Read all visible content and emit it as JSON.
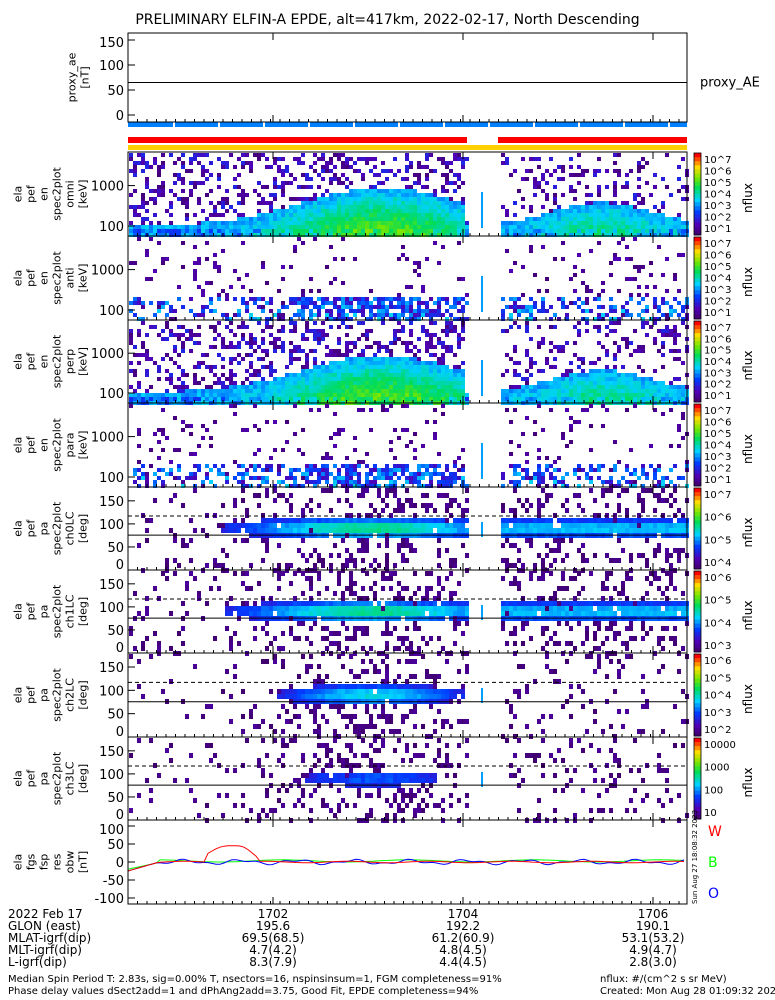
{
  "title": "PRELIMINARY ELFIN-A EPDE, alt=417km, 2022-02-17, North Descending",
  "chart_data": [
    {
      "type": "line",
      "name": "proxy_ae",
      "ylabel": [
        "proxy_ae",
        "[nT]"
      ],
      "legend": "proxy_AE",
      "yticks": [
        "0",
        "50",
        "100",
        "150"
      ],
      "ylim": [
        0,
        160
      ],
      "value": 65
    },
    {
      "type": "heatmap",
      "name": "omni",
      "ylabel": [
        "ela",
        "pef",
        "en",
        "spec2plot",
        "omni",
        "[keV]"
      ],
      "yticks": [
        "100",
        "1000"
      ],
      "cbar_ticks": [
        "10^7",
        "10^6",
        "10^5",
        "10^4",
        "10^3",
        "10^2",
        "10^1"
      ],
      "cbar_label": "nflux",
      "density": "dense"
    },
    {
      "type": "heatmap",
      "name": "anti",
      "ylabel": [
        "ela",
        "pef",
        "en",
        "spec2plot",
        "anti",
        "[keV]"
      ],
      "yticks": [
        "100",
        "1000"
      ],
      "cbar_ticks": [
        "10^7",
        "10^6",
        "10^5",
        "10^4",
        "10^3",
        "10^2",
        "10^1"
      ],
      "cbar_label": "nflux",
      "density": "sparse"
    },
    {
      "type": "heatmap",
      "name": "perp",
      "ylabel": [
        "ela",
        "pef",
        "en",
        "spec2plot",
        "perp",
        "[keV]"
      ],
      "yticks": [
        "100",
        "1000"
      ],
      "cbar_ticks": [
        "10^7",
        "10^6",
        "10^5",
        "10^4",
        "10^3",
        "10^2",
        "10^1"
      ],
      "cbar_label": "nflux",
      "density": "dense"
    },
    {
      "type": "heatmap",
      "name": "para",
      "ylabel": [
        "ela",
        "pef",
        "en",
        "spec2plot",
        "para",
        "[keV]"
      ],
      "yticks": [
        "100",
        "1000"
      ],
      "cbar_ticks": [
        "10^7",
        "10^6",
        "10^5",
        "10^4",
        "10^3",
        "10^2",
        "10^1"
      ],
      "cbar_label": "nflux",
      "density": "sparse"
    },
    {
      "type": "heatmap",
      "name": "ch0LC",
      "ylabel": [
        "ela",
        "pef",
        "pa",
        "spec2plot",
        "ch0LC",
        "[deg]"
      ],
      "yticks": [
        "0",
        "50",
        "100",
        "150"
      ],
      "cbar_ticks": [
        "10^7",
        "10^6",
        "10^5",
        "10^4"
      ],
      "cbar_label": "nflux",
      "density": "pa"
    },
    {
      "type": "heatmap",
      "name": "ch1LC",
      "ylabel": [
        "ela",
        "pef",
        "pa",
        "spec2plot",
        "ch1LC",
        "[deg]"
      ],
      "yticks": [
        "0",
        "50",
        "100",
        "150"
      ],
      "cbar_ticks": [
        "10^6",
        "10^5",
        "10^4",
        "10^3"
      ],
      "cbar_label": "nflux",
      "density": "pa"
    },
    {
      "type": "heatmap",
      "name": "ch2LC",
      "ylabel": [
        "ela",
        "pef",
        "pa",
        "spec2plot",
        "ch2LC",
        "[deg]"
      ],
      "yticks": [
        "0",
        "50",
        "100",
        "150"
      ],
      "cbar_ticks": [
        "10^6",
        "10^5",
        "10^4",
        "10^3",
        "10^2"
      ],
      "cbar_label": "nflux",
      "density": "pa2"
    },
    {
      "type": "heatmap",
      "name": "ch3LC",
      "ylabel": [
        "ela",
        "pef",
        "pa",
        "spec2plot",
        "ch3LC",
        "[deg]"
      ],
      "yticks": [
        "0",
        "50",
        "100",
        "150"
      ],
      "cbar_ticks": [
        "10000",
        "1000",
        "100",
        "10"
      ],
      "cbar_label": "nflux",
      "density": "pa3"
    },
    {
      "type": "line",
      "name": "fgs",
      "ylabel": [
        "ela",
        "fgs",
        "fsp",
        "res",
        "obw",
        "[nT]"
      ],
      "yticks": [
        "-100",
        "-50",
        "0",
        "50",
        "100"
      ],
      "ylim": [
        -100,
        100
      ],
      "legend": [
        "W",
        "B",
        "O"
      ],
      "colors": [
        "#ff0000",
        "#00ff00",
        "#0000ff"
      ]
    }
  ],
  "xaxis": {
    "ticks": [
      "1702",
      "1704",
      "1706"
    ]
  },
  "footer_rows": [
    {
      "label": "2022 Feb 17",
      "values": [
        "1702",
        "1704",
        "1706"
      ]
    },
    {
      "label": "GLON (east)",
      "values": [
        "195.6",
        "192.2",
        "190.1"
      ]
    },
    {
      "label": "MLAT-igrf(dip)",
      "values": [
        "69.5(68.5)",
        "61.2(60.9)",
        "53.1(53.2)"
      ]
    },
    {
      "label": "MLT-igrf(dip)",
      "values": [
        "4.7(4.2)",
        "4.8(4.5)",
        "4.9(4.7)"
      ]
    },
    {
      "label": "L-igrf(dip)",
      "values": [
        "8.3(7.9)",
        "4.4(4.5)",
        "2.8(3.0)"
      ]
    }
  ],
  "notes": {
    "line1": "Median Spin Period T: 2.83s, sig=0.00% T, nsectors=16, nspinsinsum=1, FGM completeness=91%",
    "line2": "Phase delay values dSect2add=1 and dPhAng2add=3.75, Good Fit, EPDE completeness=94%",
    "units": "nflux: #/(cm^2 s sr MeV)",
    "created": "Created: Mon Aug 28 01:09:32 2023",
    "stamp": "Sun Aug 27 18:08:32 2023"
  },
  "colors": {
    "red_bar": "#ff0000",
    "blue_bar": "#0080ff",
    "yellow_bar": "#ffd000"
  }
}
